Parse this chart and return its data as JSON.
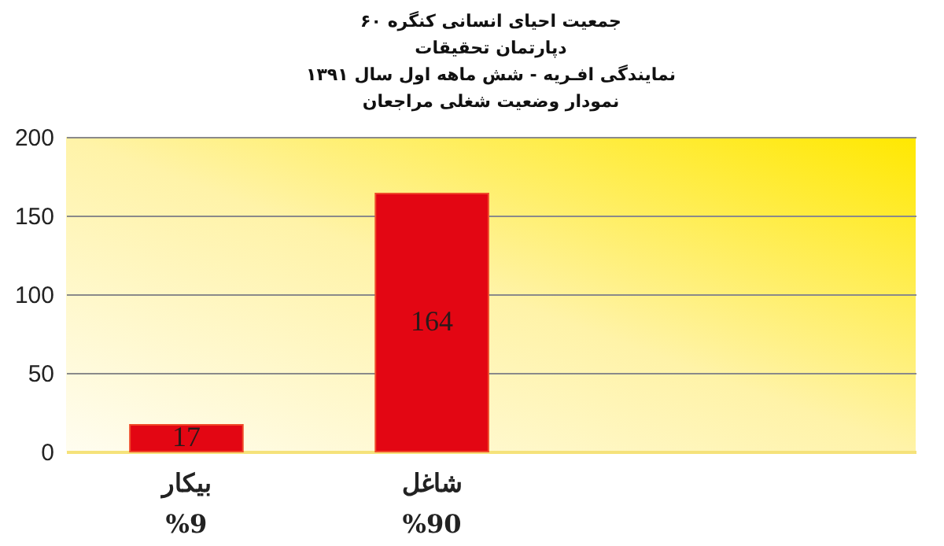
{
  "chart_data": {
    "type": "bar",
    "title": "جمعیت احیای انسانی کنگره ۶۰\nدپارتمان تحقیقات\nنمایندگی افـریه - شش ماهه اول سال ۱۳۹۱\nنمودار وضعیت شغلی مراجعان",
    "categories": [
      "بیکار\n%9",
      "شاغل\n%90"
    ],
    "values": [
      17,
      164
    ],
    "color": "#e30613",
    "ylim": [
      0,
      200
    ],
    "yticks": [
      0,
      50,
      100,
      150,
      200
    ],
    "grid": "y",
    "data_labels": true
  }
}
